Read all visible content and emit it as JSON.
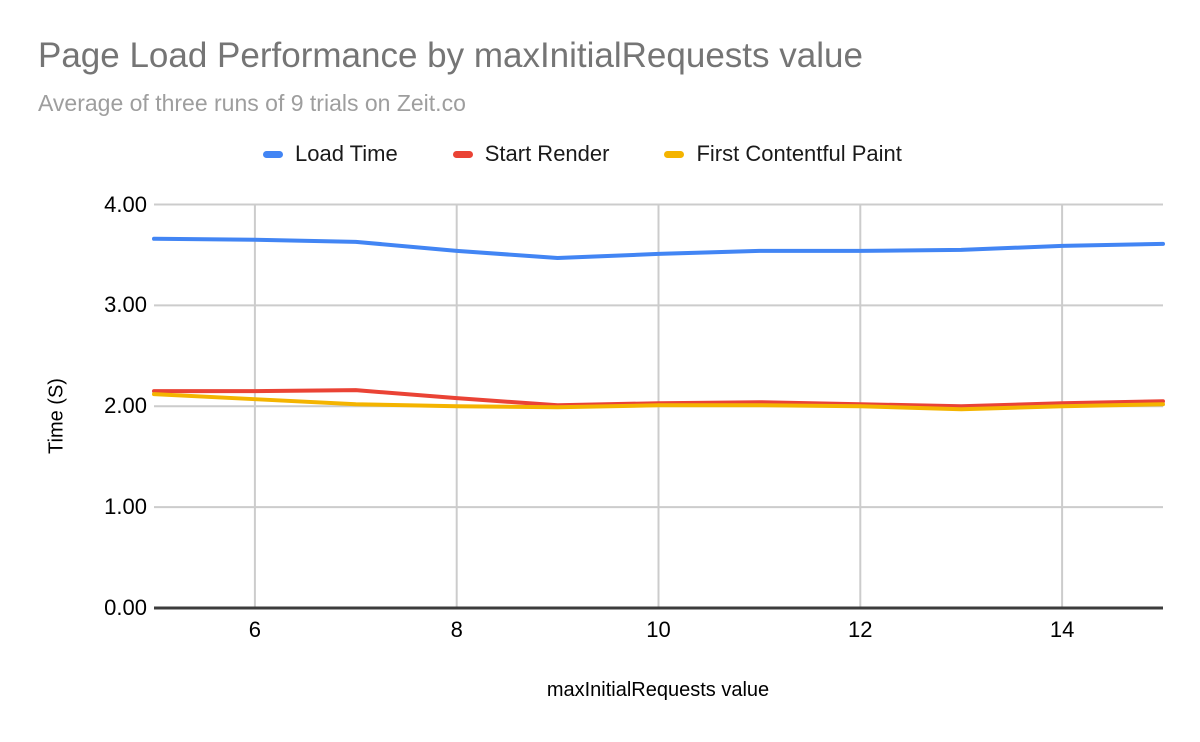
{
  "header": {
    "title": "Page Load Performance by maxInitialRequests value",
    "subtitle": "Average of three runs of 9 trials on Zeit.co",
    "title_color": "#757575",
    "subtitle_color": "#9e9e9e"
  },
  "chart_data": {
    "type": "line",
    "title": "Page Load Performance by maxInitialRequests value",
    "subtitle": "Average of three runs of 9 trials on Zeit.co",
    "xlabel": "maxInitialRequests value",
    "ylabel": "Time (S)",
    "x": [
      5,
      6,
      7,
      8,
      9,
      10,
      11,
      12,
      13,
      14,
      15
    ],
    "series": [
      {
        "name": "Load Time",
        "color": "#4285F4",
        "values": [
          3.66,
          3.65,
          3.63,
          3.54,
          3.47,
          3.51,
          3.54,
          3.54,
          3.55,
          3.59,
          3.61
        ]
      },
      {
        "name": "Start Render",
        "color": "#EA4335",
        "values": [
          2.15,
          2.15,
          2.16,
          2.08,
          2.01,
          2.03,
          2.04,
          2.02,
          2.0,
          2.03,
          2.05
        ]
      },
      {
        "name": "First Contentful Paint",
        "color": "#F4B400",
        "values": [
          2.12,
          2.07,
          2.02,
          2.0,
          1.99,
          2.01,
          2.01,
          2.0,
          1.97,
          2.0,
          2.02
        ]
      }
    ],
    "xlim": [
      5,
      15
    ],
    "ylim": [
      0,
      4
    ],
    "x_ticks": [
      6,
      8,
      10,
      12,
      14
    ],
    "y_ticks": [
      "0.00",
      "1.00",
      "2.00",
      "3.00",
      "4.00"
    ],
    "y_tick_values": [
      0,
      1,
      2,
      3,
      4
    ],
    "grid": true,
    "grid_color": "#cccccc",
    "axis_color": "#3c3c3c",
    "tick_label_color": "#000000",
    "legend_position": "top"
  }
}
